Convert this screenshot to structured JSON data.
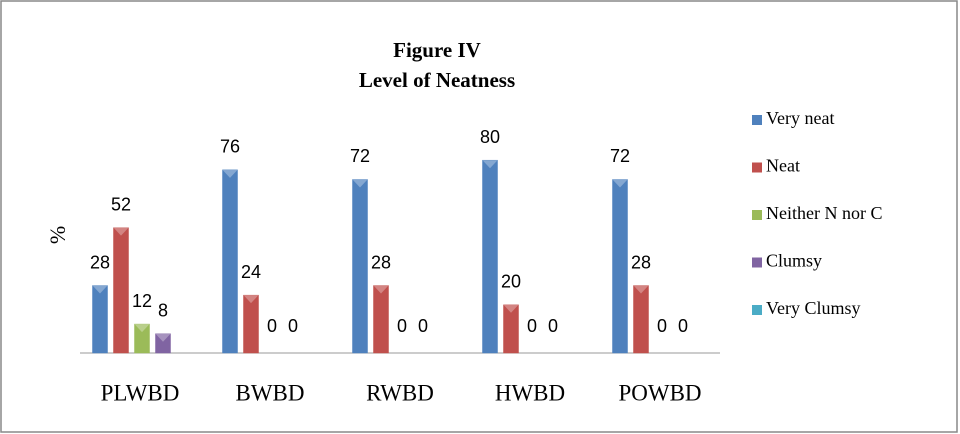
{
  "chart_data": {
    "type": "bar",
    "title": "Figure IV",
    "subtitle": "Level of Neatness",
    "y_label": "%",
    "categories": [
      "PLWBD",
      "BWBD",
      "RWBD",
      "HWBD",
      "POWBD"
    ],
    "series": [
      {
        "name": "Very neat",
        "color": "#4f81bd",
        "values": [
          28,
          76,
          72,
          80,
          72
        ]
      },
      {
        "name": "Neat",
        "color": "#c0504d",
        "values": [
          52,
          24,
          28,
          20,
          28
        ]
      },
      {
        "name": "Neither N nor C",
        "color": "#9bbb59",
        "values": [
          12,
          0,
          0,
          0,
          0
        ]
      },
      {
        "name": "Clumsy",
        "color": "#8064a2",
        "values": [
          8,
          0,
          0,
          0,
          0
        ]
      },
      {
        "name": "Very Clumsy",
        "color": "#4bacc6",
        "values": [
          null,
          null,
          null,
          null,
          null
        ]
      }
    ],
    "ylim": [
      0,
      100
    ],
    "legend": "right"
  }
}
